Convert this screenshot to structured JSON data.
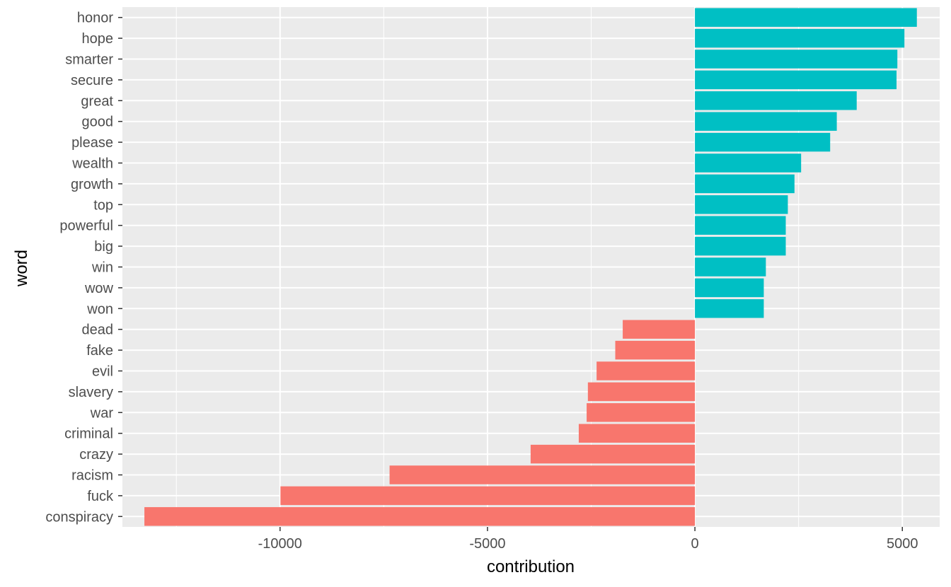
{
  "chart_data": {
    "type": "bar",
    "orientation": "horizontal",
    "xlabel": "contribution",
    "ylabel": "word",
    "xlim": [
      -13800,
      5900
    ],
    "x_ticks": [
      -10000,
      -5000,
      0,
      5000
    ],
    "x_tick_labels": [
      "-10000",
      "-5000",
      "0",
      "5000"
    ],
    "grid": true,
    "colors": {
      "positive": "#00BFC4",
      "negative": "#F8766D",
      "panel": "#EBEBEB",
      "grid": "#FFFFFF"
    },
    "categories": [
      "honor",
      "hope",
      "smarter",
      "secure",
      "great",
      "good",
      "please",
      "wealth",
      "growth",
      "top",
      "powerful",
      "big",
      "win",
      "wow",
      "won",
      "dead",
      "fake",
      "evil",
      "slavery",
      "war",
      "criminal",
      "crazy",
      "racism",
      "fuck",
      "conspiracy"
    ],
    "values": [
      5350,
      5050,
      4880,
      4860,
      3900,
      3420,
      3260,
      2560,
      2400,
      2240,
      2190,
      2190,
      1710,
      1660,
      1660,
      -1740,
      -1920,
      -2370,
      -2580,
      -2610,
      -2800,
      -3960,
      -7360,
      -9990,
      -13270
    ]
  }
}
